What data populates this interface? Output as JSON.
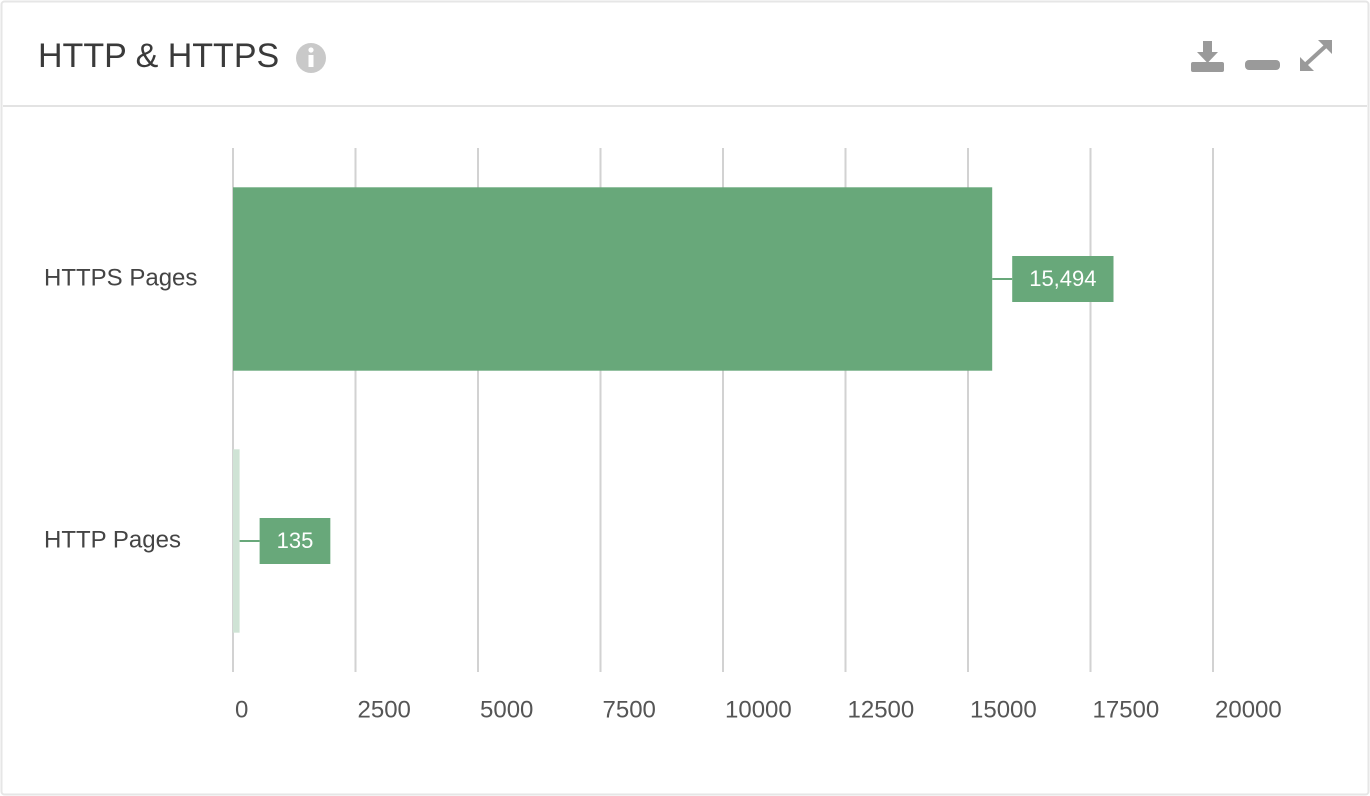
{
  "chart_data": {
    "type": "bar",
    "orientation": "horizontal",
    "title": "HTTP & HTTPS",
    "categories": [
      "HTTPS Pages",
      "HTTP Pages"
    ],
    "values": [
      15494,
      135
    ],
    "value_labels": [
      "15,494",
      "135"
    ],
    "colors": [
      "#68a87a",
      "#cfe3d5"
    ],
    "label_color": "#68a87a",
    "xlim": [
      0,
      20000
    ],
    "xticks": [
      0,
      2500,
      5000,
      7500,
      10000,
      12500,
      15000,
      17500,
      20000
    ],
    "grid": true
  }
}
